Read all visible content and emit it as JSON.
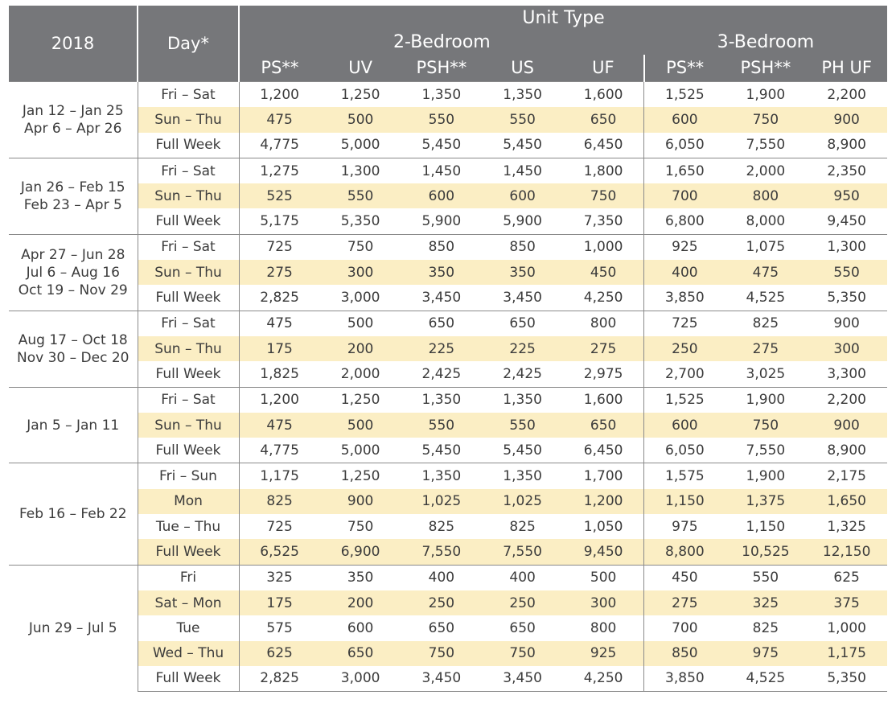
{
  "header": {
    "year_label": "2018",
    "day_label": "Day*",
    "unit_type_label": "Unit Type",
    "group_2br": "2-Bedroom",
    "group_3br": "3-Bedroom",
    "columns": [
      "PS**",
      "UV",
      "PSH**",
      "US",
      "UF",
      "PS**",
      "PSH**",
      "PH UF"
    ]
  },
  "colors": {
    "header_bg": "#76777a",
    "highlight_row": "#fbeec4",
    "rule": "#8a8a8a",
    "text": "#3b3b3b"
  },
  "groups": [
    {
      "periods": [
        "Jan 12 – Jan 25",
        "Apr 6 – Apr 26"
      ],
      "rows": [
        {
          "day": "Fri – Sat",
          "values": [
            "1,200",
            "1,250",
            "1,350",
            "1,350",
            "1,600",
            "1,525",
            "1,900",
            "2,200"
          ],
          "highlight": false
        },
        {
          "day": "Sun – Thu",
          "values": [
            "475",
            "500",
            "550",
            "550",
            "650",
            "600",
            "750",
            "900"
          ],
          "highlight": true
        },
        {
          "day": "Full Week",
          "values": [
            "4,775",
            "5,000",
            "5,450",
            "5,450",
            "6,450",
            "6,050",
            "7,550",
            "8,900"
          ],
          "highlight": false
        }
      ]
    },
    {
      "periods": [
        "Jan 26 – Feb 15",
        "Feb 23 – Apr 5"
      ],
      "rows": [
        {
          "day": "Fri – Sat",
          "values": [
            "1,275",
            "1,300",
            "1,450",
            "1,450",
            "1,800",
            "1,650",
            "2,000",
            "2,350"
          ],
          "highlight": false
        },
        {
          "day": "Sun – Thu",
          "values": [
            "525",
            "550",
            "600",
            "600",
            "750",
            "700",
            "800",
            "950"
          ],
          "highlight": true
        },
        {
          "day": "Full Week",
          "values": [
            "5,175",
            "5,350",
            "5,900",
            "5,900",
            "7,350",
            "6,800",
            "8,000",
            "9,450"
          ],
          "highlight": false
        }
      ]
    },
    {
      "periods": [
        "Apr 27 – Jun 28",
        "Jul 6 – Aug 16",
        "Oct 19 – Nov 29"
      ],
      "rows": [
        {
          "day": "Fri – Sat",
          "values": [
            "725",
            "750",
            "850",
            "850",
            "1,000",
            "925",
            "1,075",
            "1,300"
          ],
          "highlight": false
        },
        {
          "day": "Sun – Thu",
          "values": [
            "275",
            "300",
            "350",
            "350",
            "450",
            "400",
            "475",
            "550"
          ],
          "highlight": true
        },
        {
          "day": "Full Week",
          "values": [
            "2,825",
            "3,000",
            "3,450",
            "3,450",
            "4,250",
            "3,850",
            "4,525",
            "5,350"
          ],
          "highlight": false
        }
      ]
    },
    {
      "periods": [
        "Aug 17 – Oct 18",
        "Nov 30 – Dec 20"
      ],
      "rows": [
        {
          "day": "Fri – Sat",
          "values": [
            "475",
            "500",
            "650",
            "650",
            "800",
            "725",
            "825",
            "900"
          ],
          "highlight": false
        },
        {
          "day": "Sun – Thu",
          "values": [
            "175",
            "200",
            "225",
            "225",
            "275",
            "250",
            "275",
            "300"
          ],
          "highlight": true
        },
        {
          "day": "Full Week",
          "values": [
            "1,825",
            "2,000",
            "2,425",
            "2,425",
            "2,975",
            "2,700",
            "3,025",
            "3,300"
          ],
          "highlight": false
        }
      ]
    },
    {
      "periods": [
        "Jan 5 – Jan 11"
      ],
      "rows": [
        {
          "day": "Fri – Sat",
          "values": [
            "1,200",
            "1,250",
            "1,350",
            "1,350",
            "1,600",
            "1,525",
            "1,900",
            "2,200"
          ],
          "highlight": false
        },
        {
          "day": "Sun – Thu",
          "values": [
            "475",
            "500",
            "550",
            "550",
            "650",
            "600",
            "750",
            "900"
          ],
          "highlight": true
        },
        {
          "day": "Full Week",
          "values": [
            "4,775",
            "5,000",
            "5,450",
            "5,450",
            "6,450",
            "6,050",
            "7,550",
            "8,900"
          ],
          "highlight": false
        }
      ]
    },
    {
      "periods": [
        "Feb 16 – Feb 22"
      ],
      "rows": [
        {
          "day": "Fri – Sun",
          "values": [
            "1,175",
            "1,250",
            "1,350",
            "1,350",
            "1,700",
            "1,575",
            "1,900",
            "2,175"
          ],
          "highlight": false
        },
        {
          "day": "Mon",
          "values": [
            "825",
            "900",
            "1,025",
            "1,025",
            "1,200",
            "1,150",
            "1,375",
            "1,650"
          ],
          "highlight": true
        },
        {
          "day": "Tue – Thu",
          "values": [
            "725",
            "750",
            "825",
            "825",
            "1,050",
            "975",
            "1,150",
            "1,325"
          ],
          "highlight": false
        },
        {
          "day": "Full Week",
          "values": [
            "6,525",
            "6,900",
            "7,550",
            "7,550",
            "9,450",
            "8,800",
            "10,525",
            "12,150"
          ],
          "highlight": true
        }
      ]
    },
    {
      "periods": [
        "Jun 29 – Jul 5"
      ],
      "rows": [
        {
          "day": "Fri",
          "values": [
            "325",
            "350",
            "400",
            "400",
            "500",
            "450",
            "550",
            "625"
          ],
          "highlight": false
        },
        {
          "day": "Sat – Mon",
          "values": [
            "175",
            "200",
            "250",
            "250",
            "300",
            "275",
            "325",
            "375"
          ],
          "highlight": true
        },
        {
          "day": "Tue",
          "values": [
            "575",
            "600",
            "650",
            "650",
            "800",
            "700",
            "825",
            "1,000"
          ],
          "highlight": false
        },
        {
          "day": "Wed – Thu",
          "values": [
            "625",
            "650",
            "750",
            "750",
            "925",
            "850",
            "975",
            "1,175"
          ],
          "highlight": true
        },
        {
          "day": "Full Week",
          "values": [
            "2,825",
            "3,000",
            "3,450",
            "3,450",
            "4,250",
            "3,850",
            "4,525",
            "5,350"
          ],
          "highlight": false
        }
      ]
    }
  ]
}
